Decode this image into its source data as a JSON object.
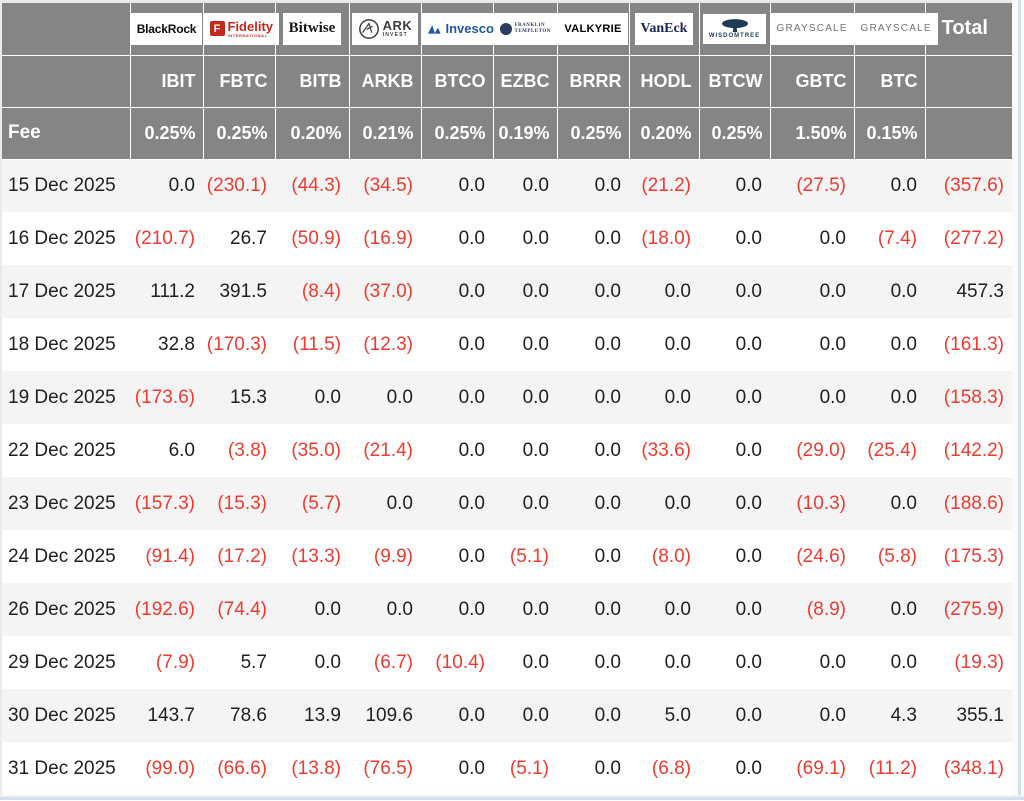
{
  "colors": {
    "header_bg": "#858585",
    "neg_red": "#ef3b2f",
    "alt_row_bg": "#f4f4f4",
    "text_dark": "#1f1f21",
    "blackrock_black": "#0b0b0b",
    "fidelity_red": "#c6281f",
    "bitwise_black": "#161616",
    "ark_dark": "#3c3c3c",
    "invesco_blue": "#2257a5",
    "franklin_navy": "#2b3a61",
    "valkyrie_black": "#000000",
    "vaneck_navy": "#17275c",
    "wisdomtree_navy": "#1d3b55",
    "grayscale_gray": "#6f7276"
  },
  "logos": [
    {
      "text": "BlackRock"
    },
    {
      "text": "Fidelity",
      "sub": "INTERNATIONAL",
      "icon_letter": "F"
    },
    {
      "text": "Bitwise"
    },
    {
      "text": "ARK",
      "sub": "INVEST"
    },
    {
      "text": "Invesco"
    },
    {
      "text": "FRANKLIN",
      "sub": "TEMPLETON"
    },
    {
      "text": "VALKYRIE"
    },
    {
      "text": "VanEck"
    },
    {
      "text": "WISDOMTREE"
    },
    {
      "text": "GRAYSCALE"
    },
    {
      "text": "GRAYSCALE"
    }
  ],
  "chart_data": {
    "type": "table",
    "issuers": [
      "BlackRock",
      "Fidelity",
      "Bitwise",
      "ARK Invest",
      "Invesco",
      "Franklin Templeton",
      "Valkyrie",
      "VanEck",
      "WisdomTree",
      "Grayscale",
      "Grayscale"
    ],
    "tickers": [
      "IBIT",
      "FBTC",
      "BITB",
      "ARKB",
      "BTCO",
      "EZBC",
      "BRRR",
      "HODL",
      "BTCW",
      "GBTC",
      "BTC"
    ],
    "fee_label": "Fee",
    "fees": [
      "0.25%",
      "0.25%",
      "0.20%",
      "0.21%",
      "0.25%",
      "0.19%",
      "0.25%",
      "0.20%",
      "0.25%",
      "1.50%",
      "0.15%"
    ],
    "total_label": "Total",
    "rows": [
      {
        "date": "15 Dec 2025",
        "values": [
          "0.0",
          "(230.1)",
          "(44.3)",
          "(34.5)",
          "0.0",
          "0.0",
          "0.0",
          "(21.2)",
          "0.0",
          "(27.5)",
          "0.0"
        ],
        "total": "(357.6)"
      },
      {
        "date": "16 Dec 2025",
        "values": [
          "(210.7)",
          "26.7",
          "(50.9)",
          "(16.9)",
          "0.0",
          "0.0",
          "0.0",
          "(18.0)",
          "0.0",
          "0.0",
          "(7.4)"
        ],
        "total": "(277.2)"
      },
      {
        "date": "17 Dec 2025",
        "values": [
          "111.2",
          "391.5",
          "(8.4)",
          "(37.0)",
          "0.0",
          "0.0",
          "0.0",
          "0.0",
          "0.0",
          "0.0",
          "0.0"
        ],
        "total": "457.3"
      },
      {
        "date": "18 Dec 2025",
        "values": [
          "32.8",
          "(170.3)",
          "(11.5)",
          "(12.3)",
          "0.0",
          "0.0",
          "0.0",
          "0.0",
          "0.0",
          "0.0",
          "0.0"
        ],
        "total": "(161.3)"
      },
      {
        "date": "19 Dec 2025",
        "values": [
          "(173.6)",
          "15.3",
          "0.0",
          "0.0",
          "0.0",
          "0.0",
          "0.0",
          "0.0",
          "0.0",
          "0.0",
          "0.0"
        ],
        "total": "(158.3)"
      },
      {
        "date": "22 Dec 2025",
        "values": [
          "6.0",
          "(3.8)",
          "(35.0)",
          "(21.4)",
          "0.0",
          "0.0",
          "0.0",
          "(33.6)",
          "0.0",
          "(29.0)",
          "(25.4)"
        ],
        "total": "(142.2)"
      },
      {
        "date": "23 Dec 2025",
        "values": [
          "(157.3)",
          "(15.3)",
          "(5.7)",
          "0.0",
          "0.0",
          "0.0",
          "0.0",
          "0.0",
          "0.0",
          "(10.3)",
          "0.0"
        ],
        "total": "(188.6)"
      },
      {
        "date": "24 Dec 2025",
        "values": [
          "(91.4)",
          "(17.2)",
          "(13.3)",
          "(9.9)",
          "0.0",
          "(5.1)",
          "0.0",
          "(8.0)",
          "0.0",
          "(24.6)",
          "(5.8)"
        ],
        "total": "(175.3)"
      },
      {
        "date": "26 Dec 2025",
        "values": [
          "(192.6)",
          "(74.4)",
          "0.0",
          "0.0",
          "0.0",
          "0.0",
          "0.0",
          "0.0",
          "0.0",
          "(8.9)",
          "0.0"
        ],
        "total": "(275.9)"
      },
      {
        "date": "29 Dec 2025",
        "values": [
          "(7.9)",
          "5.7",
          "0.0",
          "(6.7)",
          "(10.4)",
          "0.0",
          "0.0",
          "0.0",
          "0.0",
          "0.0",
          "0.0"
        ],
        "total": "(19.3)"
      },
      {
        "date": "30 Dec 2025",
        "values": [
          "143.7",
          "78.6",
          "13.9",
          "109.6",
          "0.0",
          "0.0",
          "0.0",
          "5.0",
          "0.0",
          "0.0",
          "4.3"
        ],
        "total": "355.1"
      },
      {
        "date": "31 Dec 2025",
        "values": [
          "(99.0)",
          "(66.6)",
          "(13.8)",
          "(76.5)",
          "0.0",
          "(5.1)",
          "0.0",
          "(6.8)",
          "0.0",
          "(69.1)",
          "(11.2)"
        ],
        "total": "(348.1)"
      }
    ]
  }
}
